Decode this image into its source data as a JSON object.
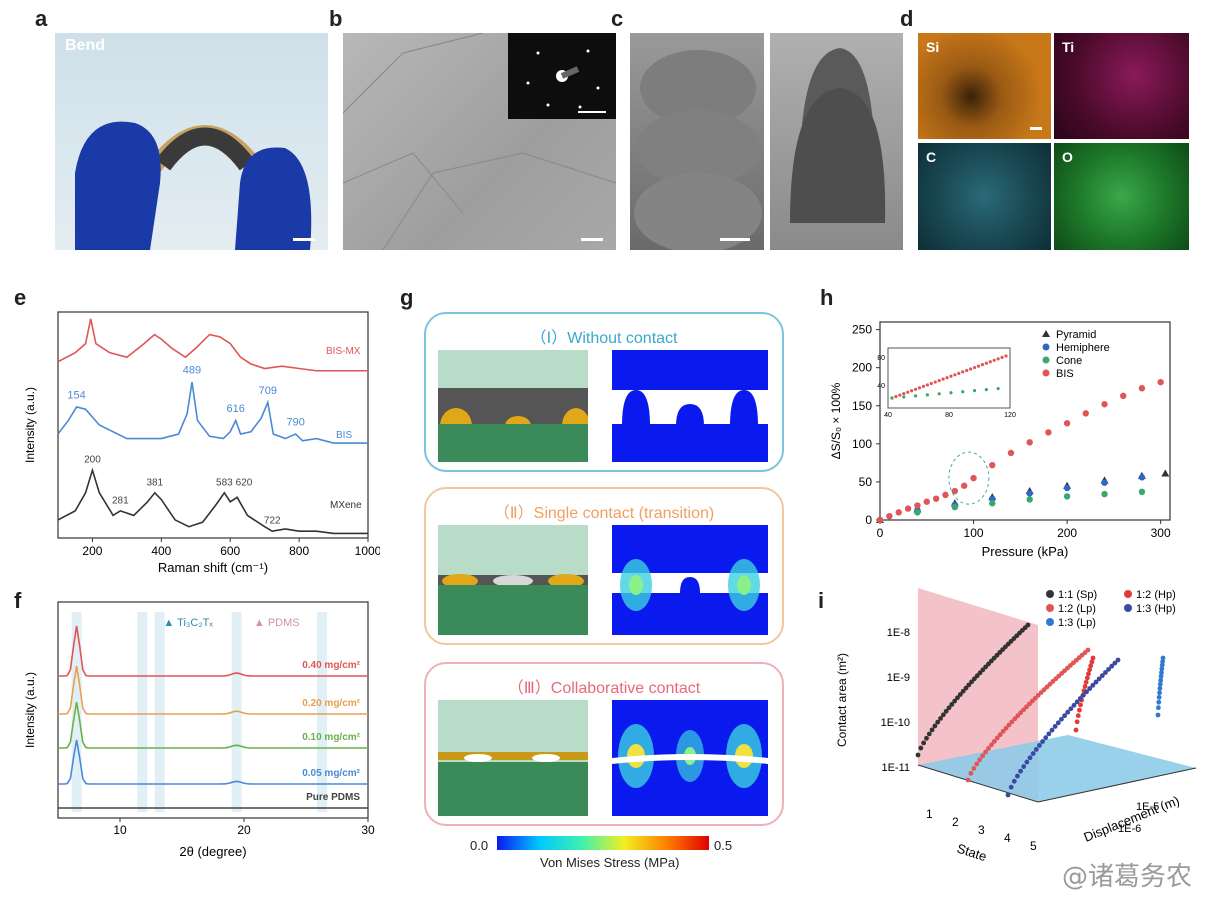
{
  "panels": {
    "a": {
      "letter": "a",
      "label": "Bend"
    },
    "b": {
      "letter": "b"
    },
    "c": {
      "letter": "c"
    },
    "d": {
      "letter": "d",
      "maps": [
        "Si",
        "Ti",
        "C",
        "O"
      ]
    },
    "e": {
      "letter": "e"
    },
    "f": {
      "letter": "f"
    },
    "g": {
      "letter": "g",
      "states": [
        "（Ⅰ）Without contact",
        "（Ⅱ）Single contact  (transition)",
        "（Ⅲ）Collaborative contact"
      ],
      "colorbar_min": "0.0",
      "colorbar_max": "0.5",
      "colorbar_label": "Von Mises Stress (MPa)"
    },
    "h": {
      "letter": "h"
    },
    "i": {
      "letter": "i"
    }
  },
  "colors": {
    "red": "#e05555",
    "blue": "#4a8ad4",
    "black": "#333333",
    "orange": "#e8a050",
    "green": "#3aa86a",
    "navy": "#3a4aa0"
  },
  "watermark": "@诸葛务农",
  "chart_data": [
    {
      "panel": "e",
      "type": "line",
      "xlabel": "Raman shift (cm⁻¹)",
      "ylabel": "Intensity (a.u.)",
      "xlim": [
        100,
        1000
      ],
      "xticks": [
        "200",
        "400",
        "600",
        "800",
        "1000"
      ],
      "series": [
        {
          "name": "BIS-MX",
          "color": "#e05555",
          "x": [
            100,
            150,
            180,
            195,
            210,
            250,
            300,
            350,
            380,
            400,
            430,
            470,
            500,
            540,
            570,
            600,
            630,
            660,
            700,
            750,
            800,
            850,
            900,
            950,
            1000
          ],
          "y": [
            0.78,
            0.82,
            0.86,
            0.97,
            0.86,
            0.82,
            0.8,
            0.86,
            0.9,
            0.88,
            0.84,
            0.8,
            0.84,
            0.9,
            0.89,
            0.86,
            0.8,
            0.77,
            0.75,
            0.76,
            0.75,
            0.74,
            0.74,
            0.74,
            0.74
          ]
        },
        {
          "name": "BIS",
          "color": "#4a8ad4",
          "x": [
            100,
            130,
            154,
            180,
            220,
            300,
            400,
            450,
            475,
            489,
            505,
            540,
            580,
            600,
            616,
            630,
            660,
            690,
            709,
            725,
            760,
            790,
            810,
            850,
            900,
            950,
            1000
          ],
          "y": [
            0.46,
            0.52,
            0.58,
            0.57,
            0.5,
            0.44,
            0.44,
            0.46,
            0.55,
            0.69,
            0.52,
            0.45,
            0.44,
            0.47,
            0.52,
            0.46,
            0.47,
            0.53,
            0.6,
            0.46,
            0.44,
            0.46,
            0.43,
            0.44,
            0.42,
            0.42,
            0.42
          ]
        },
        {
          "name": "MXene",
          "color": "#333333",
          "x": [
            100,
            150,
            180,
            200,
            220,
            260,
            281,
            320,
            360,
            381,
            400,
            440,
            480,
            520,
            560,
            583,
            600,
            620,
            650,
            700,
            722,
            760,
            800,
            850,
            900,
            950,
            1000
          ],
          "y": [
            0.08,
            0.12,
            0.2,
            0.3,
            0.2,
            0.1,
            0.12,
            0.1,
            0.16,
            0.2,
            0.17,
            0.08,
            0.05,
            0.07,
            0.15,
            0.2,
            0.16,
            0.18,
            0.1,
            0.05,
            0.03,
            0.04,
            0.03,
            0.03,
            0.02,
            0.02,
            0.02
          ]
        }
      ],
      "annotations": {
        "BIS": [
          "154",
          "489",
          "616",
          "709",
          "790"
        ],
        "MXene": [
          "200",
          "281",
          "381",
          "583",
          "620",
          "722"
        ]
      }
    },
    {
      "panel": "f",
      "type": "line",
      "xlabel": "2θ (degree)",
      "ylabel": "Intensity (a.u.)",
      "xlim": [
        5,
        30
      ],
      "xticks": [
        "10",
        "20",
        "30"
      ],
      "legend": [
        "Ti₃C₂Tₓ",
        "PDMS"
      ],
      "series": [
        {
          "name": "0.40 mg/cm²",
          "color": "#e05555"
        },
        {
          "name": "0.20 mg/cm²",
          "color": "#e8a050"
        },
        {
          "name": "0.10 mg/cm²",
          "color": "#6ab04a"
        },
        {
          "name": "0.05 mg/cm²",
          "color": "#4a8ad4"
        },
        {
          "name": "Pure PDMS",
          "color": "#444444"
        }
      ]
    },
    {
      "panel": "h",
      "type": "scatter",
      "xlabel": "Pressure (kPa)",
      "ylabel": "ΔS/S₀ × 100%",
      "xlim": [
        0,
        310
      ],
      "ylim": [
        0,
        260
      ],
      "xticks": [
        0,
        100,
        200,
        300
      ],
      "yticks": [
        0,
        50,
        100,
        150,
        200,
        250
      ],
      "series": [
        {
          "name": "Pyramid",
          "color": "#333333",
          "x": [
            0,
            40,
            80,
            120,
            160,
            200,
            240,
            280,
            305
          ],
          "y": [
            0,
            14,
            22,
            30,
            38,
            45,
            52,
            58,
            61
          ]
        },
        {
          "name": "Hemiphere",
          "color": "#2f66c8",
          "x": [
            0,
            40,
            80,
            120,
            160,
            200,
            240,
            280
          ],
          "y": [
            0,
            13,
            20,
            28,
            35,
            42,
            49,
            56
          ]
        },
        {
          "name": "Cone",
          "color": "#3aa86a",
          "x": [
            0,
            40,
            80,
            120,
            160,
            200,
            240,
            280
          ],
          "y": [
            0,
            10,
            17,
            22,
            27,
            31,
            34,
            37
          ]
        },
        {
          "name": "BIS",
          "color": "#e05555",
          "x": [
            0,
            10,
            20,
            30,
            40,
            50,
            60,
            70,
            80,
            90,
            100,
            120,
            140,
            160,
            180,
            200,
            220,
            240,
            260,
            280,
            300
          ],
          "y": [
            0,
            5,
            10,
            15,
            19,
            24,
            28,
            33,
            38,
            45,
            55,
            72,
            88,
            102,
            115,
            127,
            140,
            152,
            163,
            173,
            181
          ]
        }
      ],
      "inset": {
        "xlim": [
          40,
          120
        ],
        "xticks": [
          "40",
          "80",
          "120"
        ],
        "yticks": [
          "40",
          "80"
        ]
      }
    },
    {
      "panel": "i",
      "type": "scatter",
      "xlabel": "State",
      "ylabel": "Contact area (m²)",
      "zlabel": "Displacement (m)",
      "yticks": [
        "1E-8",
        "1E-9",
        "1E-10",
        "1E-11"
      ],
      "xticks": [
        "1",
        "2",
        "3",
        "4",
        "5"
      ],
      "zticks": [
        "1E-5",
        "1E-6"
      ],
      "series": [
        {
          "name": "1:1 (Sp)",
          "color": "#333333"
        },
        {
          "name": "1:2 (Hp)",
          "color": "#e03a3a"
        },
        {
          "name": "1:2 (Lp)",
          "color": "#e05555"
        },
        {
          "name": "1:3 (Hp)",
          "color": "#3a4aa0"
        },
        {
          "name": "1:3 (Lp)",
          "color": "#2f7ad0"
        }
      ]
    }
  ]
}
